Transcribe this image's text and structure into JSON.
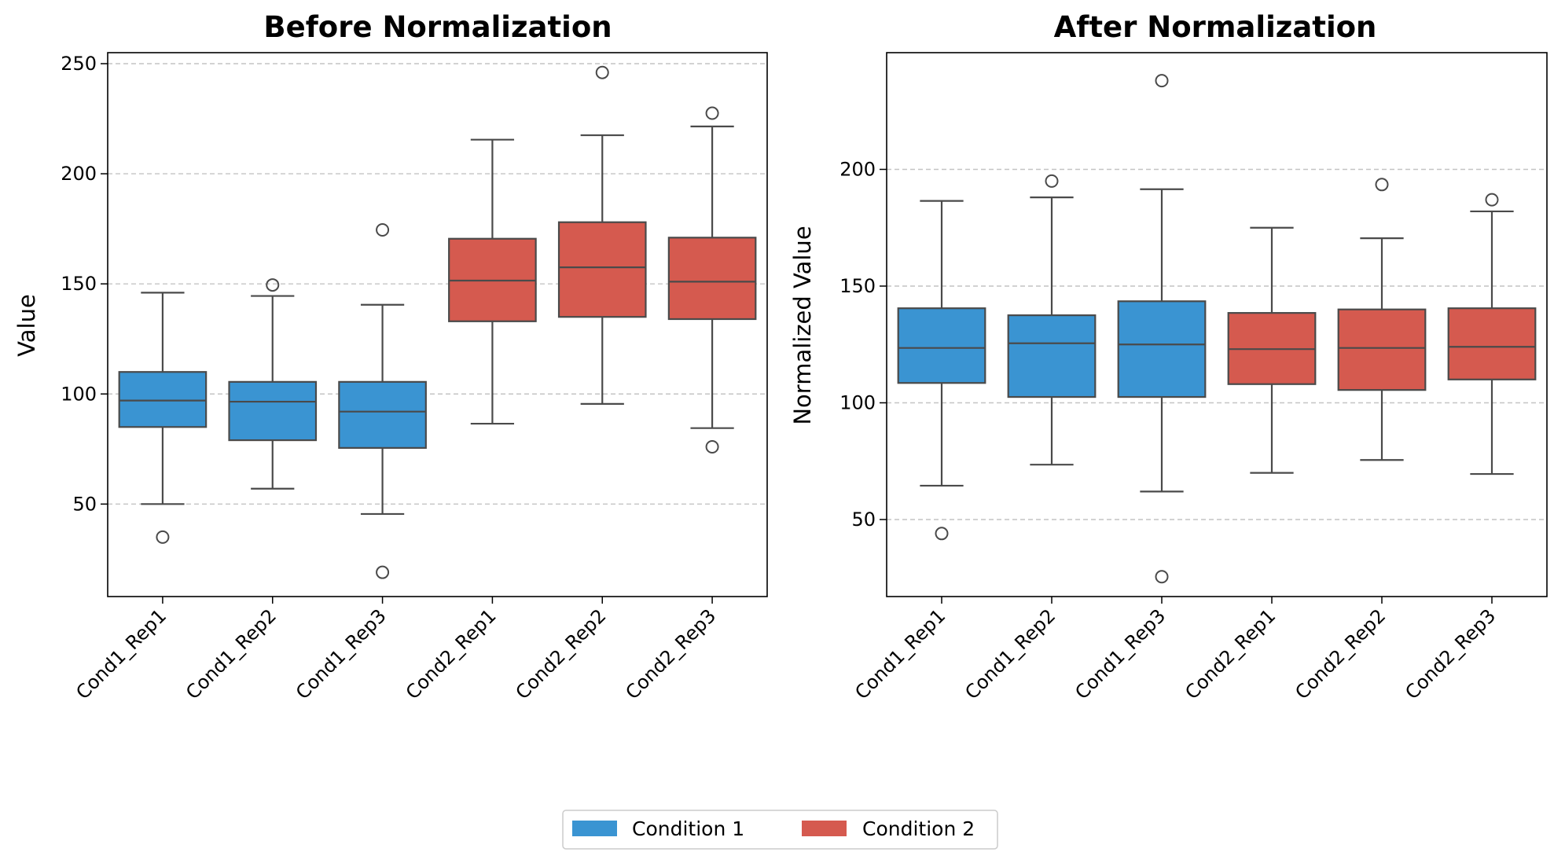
{
  "colors": {
    "condition_1": "#3a94d2",
    "condition_2": "#d55a4f",
    "box_edge": "#4a4a4a",
    "grid": "#c4c4c4"
  },
  "legend": {
    "placement": "bottom-center",
    "entries": [
      {
        "label": "Condition 1",
        "color": "#3a94d2"
      },
      {
        "label": "Condition 2",
        "color": "#d55a4f"
      }
    ]
  },
  "chart_data": [
    {
      "type": "box",
      "title": "Before Normalization",
      "xlabel": "",
      "ylabel": "Value",
      "ylim": [
        8,
        255
      ],
      "yticks": [
        50,
        100,
        150,
        200,
        250
      ],
      "grid": "y-dashed",
      "categories": [
        "Cond1_Rep1",
        "Cond1_Rep2",
        "Cond1_Rep3",
        "Cond2_Rep1",
        "Cond2_Rep2",
        "Cond2_Rep3"
      ],
      "condition": [
        1,
        1,
        1,
        2,
        2,
        2
      ],
      "boxes": [
        {
          "whisker_low": 50,
          "q1": 85,
          "median": 97,
          "q3": 110,
          "whisker_high": 146,
          "outliers": [
            35
          ]
        },
        {
          "whisker_low": 57,
          "q1": 79,
          "median": 96.5,
          "q3": 105.5,
          "whisker_high": 144.5,
          "outliers": [
            149.5
          ]
        },
        {
          "whisker_low": 45.5,
          "q1": 75.5,
          "median": 92,
          "q3": 105.5,
          "whisker_high": 140.5,
          "outliers": [
            174.5,
            19
          ]
        },
        {
          "whisker_low": 86.5,
          "q1": 133,
          "median": 151.5,
          "q3": 170.5,
          "whisker_high": 215.5,
          "outliers": []
        },
        {
          "whisker_low": 95.5,
          "q1": 135,
          "median": 157.5,
          "q3": 178,
          "whisker_high": 217.5,
          "outliers": [
            246
          ]
        },
        {
          "whisker_low": 84.5,
          "q1": 134,
          "median": 151,
          "q3": 171,
          "whisker_high": 221.5,
          "outliers": [
            227.5,
            76
          ]
        }
      ]
    },
    {
      "type": "box",
      "title": "After Normalization",
      "xlabel": "",
      "ylabel": "Normalized Value",
      "ylim": [
        17,
        250
      ],
      "yticks": [
        50,
        100,
        150,
        200
      ],
      "grid": "y-dashed",
      "categories": [
        "Cond1_Rep1",
        "Cond1_Rep2",
        "Cond1_Rep3",
        "Cond2_Rep1",
        "Cond2_Rep2",
        "Cond2_Rep3"
      ],
      "condition": [
        1,
        1,
        1,
        2,
        2,
        2
      ],
      "boxes": [
        {
          "whisker_low": 64.5,
          "q1": 108.5,
          "median": 123.5,
          "q3": 140.5,
          "whisker_high": 186.5,
          "outliers": [
            44
          ]
        },
        {
          "whisker_low": 73.5,
          "q1": 102.5,
          "median": 125.5,
          "q3": 137.5,
          "whisker_high": 188,
          "outliers": [
            195
          ]
        },
        {
          "whisker_low": 62,
          "q1": 102.5,
          "median": 125,
          "q3": 143.5,
          "whisker_high": 191.5,
          "outliers": [
            238,
            25.5
          ]
        },
        {
          "whisker_low": 70,
          "q1": 108,
          "median": 123,
          "q3": 138.5,
          "whisker_high": 175,
          "outliers": []
        },
        {
          "whisker_low": 75.5,
          "q1": 105.5,
          "median": 123.5,
          "q3": 140,
          "whisker_high": 170.5,
          "outliers": [
            193.5
          ]
        },
        {
          "whisker_low": 69.5,
          "q1": 110,
          "median": 124,
          "q3": 140.5,
          "whisker_high": 182,
          "outliers": [
            187
          ]
        }
      ]
    }
  ]
}
